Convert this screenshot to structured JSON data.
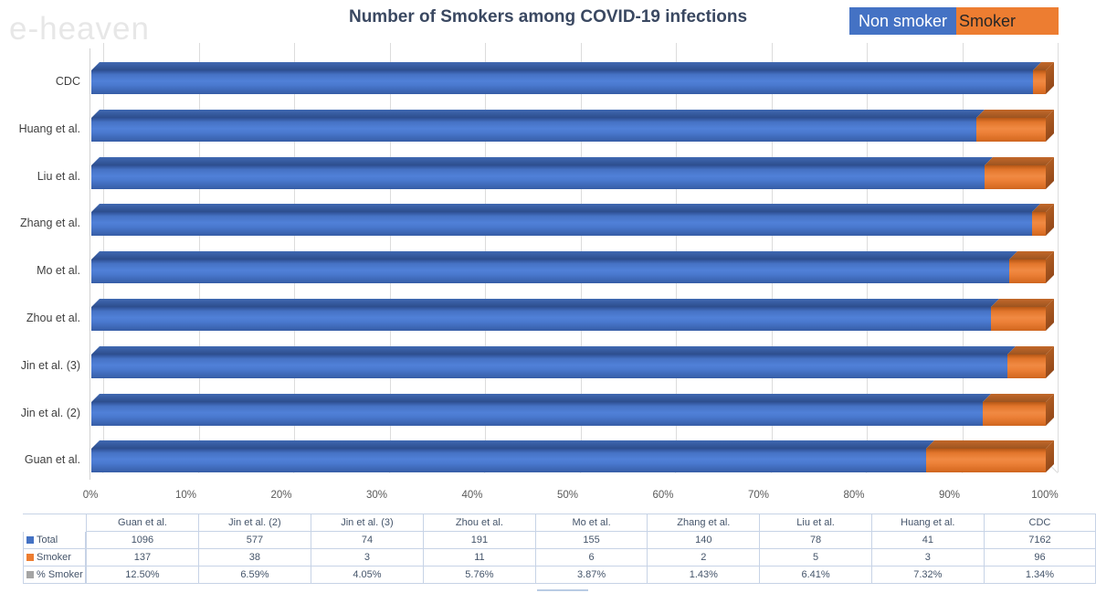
{
  "watermark": "e-heaven",
  "title": "Number of Smokers among COVID-19 infections",
  "legend": {
    "items": [
      {
        "label": "Non smoker",
        "color": "#4472C4",
        "text_color": "#ffffff"
      },
      {
        "label": "Smoker",
        "color": "#ED7D31",
        "text_color": "#262626"
      }
    ],
    "position": "top-right"
  },
  "chart_data": {
    "type": "bar",
    "orientation": "horizontal",
    "stacked_100_percent": true,
    "title": "Number of Smokers among COVID-19 infections",
    "grid": true,
    "style": "3d",
    "x_axis": {
      "min": 0,
      "max": 100,
      "tick_step": 10,
      "ticks": [
        "0%",
        "10%",
        "20%",
        "30%",
        "40%",
        "50%",
        "60%",
        "70%",
        "80%",
        "90%",
        "100%"
      ]
    },
    "series_names": [
      "Non smoker",
      "Smoker"
    ],
    "colors": {
      "non_smoker": "#4472C4",
      "smoker": "#ED7D31"
    },
    "bars_top_to_bottom": [
      {
        "category": "CDC",
        "smoker_pct": 1.34
      },
      {
        "category": "Huang et al.",
        "smoker_pct": 7.32
      },
      {
        "category": "Liu et al.",
        "smoker_pct": 6.41
      },
      {
        "category": "Zhang et al.",
        "smoker_pct": 1.43
      },
      {
        "category": "Mo et al.",
        "smoker_pct": 3.87
      },
      {
        "category": "Zhou et al.",
        "smoker_pct": 5.76
      },
      {
        "category": "Jin et al. (3)",
        "smoker_pct": 4.05
      },
      {
        "category": "Jin et al. (2)",
        "smoker_pct": 6.59
      },
      {
        "category": "Guan et al.",
        "smoker_pct": 12.5
      }
    ],
    "table": {
      "columns": [
        "Guan et al.",
        "Jin et al. (2)",
        "Jin et al. (3)",
        "Zhou et al.",
        "Mo et al.",
        "Zhang et al.",
        "Liu et al.",
        "Huang et al.",
        "CDC"
      ],
      "rows": [
        {
          "label": "Total",
          "swatch": "#4472C4",
          "values": [
            "1096",
            "577",
            "74",
            "191",
            "155",
            "140",
            "78",
            "41",
            "7162"
          ]
        },
        {
          "label": "Smoker",
          "swatch": "#ED7D31",
          "values": [
            "137",
            "38",
            "3",
            "11",
            "6",
            "2",
            "5",
            "3",
            "96"
          ]
        },
        {
          "label": "% Smoker",
          "swatch": "#A5A5A5",
          "values": [
            "12.50%",
            "6.59%",
            "4.05%",
            "5.76%",
            "3.87%",
            "1.43%",
            "6.41%",
            "7.32%",
            "1.34%"
          ]
        }
      ]
    }
  }
}
